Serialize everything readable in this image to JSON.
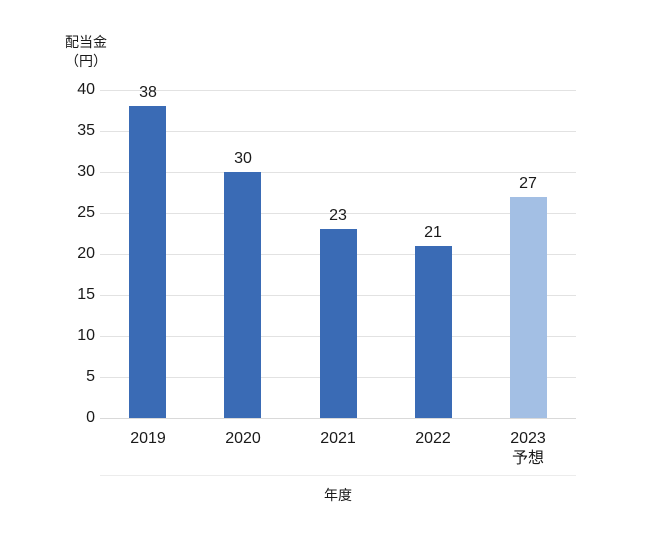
{
  "chart_data": {
    "type": "bar",
    "title": "",
    "ylabel_lines": [
      "配当金",
      "（円）"
    ],
    "xlabel": "年度",
    "categories": [
      [
        "2019"
      ],
      [
        "2020"
      ],
      [
        "2021"
      ],
      [
        "2022"
      ],
      [
        "2023",
        "予想"
      ]
    ],
    "values": [
      38,
      30,
      23,
      21,
      27
    ],
    "value_labels": [
      "38",
      "30",
      "23",
      "21",
      "27"
    ],
    "bar_colors": [
      "#3A6BB5",
      "#3A6BB5",
      "#3A6BB5",
      "#3A6BB5",
      "#A3BFE4"
    ],
    "yticks": [
      0,
      5,
      10,
      15,
      20,
      25,
      30,
      35,
      40
    ],
    "ylim": [
      0,
      40
    ],
    "grid": true,
    "legend": "none",
    "colors": {
      "bar_actual": "#3A6BB5",
      "bar_forecast": "#A3BFE4",
      "gridline": "#e2e2e2",
      "axis_line": "#d9d9d9",
      "text": "#1a1a1a",
      "background": "#ffffff"
    }
  }
}
